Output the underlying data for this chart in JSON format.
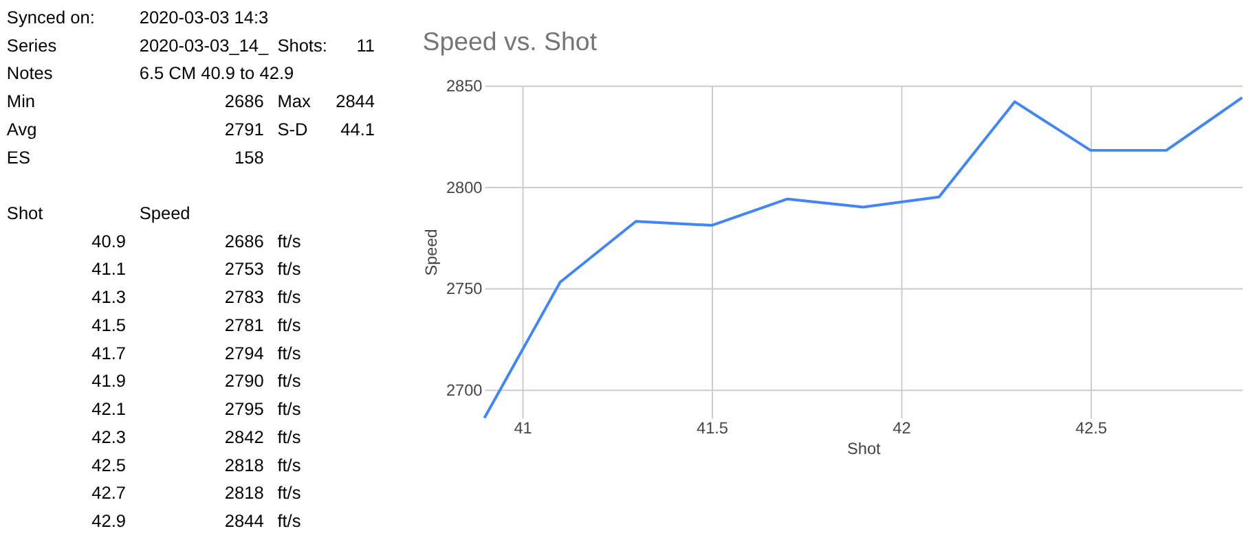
{
  "chart_data": {
    "type": "line",
    "title": "Speed vs. Shot",
    "xlabel": "Shot",
    "ylabel": "Speed",
    "x": [
      40.9,
      41.1,
      41.3,
      41.5,
      41.7,
      41.9,
      42.1,
      42.3,
      42.5,
      42.7,
      42.9
    ],
    "series": [
      {
        "color": "#4285f4",
        "values": [
          2686,
          2753,
          2783,
          2781,
          2794,
          2790,
          2795,
          2842,
          2818,
          2818,
          2844
        ]
      }
    ],
    "xlim": [
      40.9,
      42.9
    ],
    "xticks": [
      41,
      41.5,
      42,
      42.5
    ],
    "ylim": [
      2686,
      2850
    ],
    "yticks": [
      2700,
      2750,
      2800,
      2850
    ],
    "grid": true,
    "marker": "none",
    "line_style": "solid",
    "legend": false,
    "annotations": [
      "Synced on:",
      "2020-03-03 14:3",
      "Series",
      "2020-03-03_14_",
      "Shots:",
      "11",
      "Notes",
      "6.5 CM 40.9 to 42.9",
      "Min",
      "2686",
      "Max",
      "2844",
      "Avg",
      "2791",
      "S-D",
      "44.1",
      "ES",
      "158",
      "Shot",
      "Speed",
      "40.9",
      "2686",
      "ft/s",
      "41.1",
      "2753",
      "ft/s",
      "41.3",
      "2783",
      "ft/s",
      "41.5",
      "2781",
      "ft/s",
      "41.7",
      "2794",
      "ft/s",
      "41.9",
      "2790",
      "ft/s",
      "42.1",
      "2795",
      "ft/s",
      "42.3",
      "2842",
      "ft/s",
      "42.5",
      "2818",
      "ft/s",
      "42.7",
      "2818",
      "ft/s",
      "42.9",
      "2844",
      "ft/s"
    ]
  }
}
